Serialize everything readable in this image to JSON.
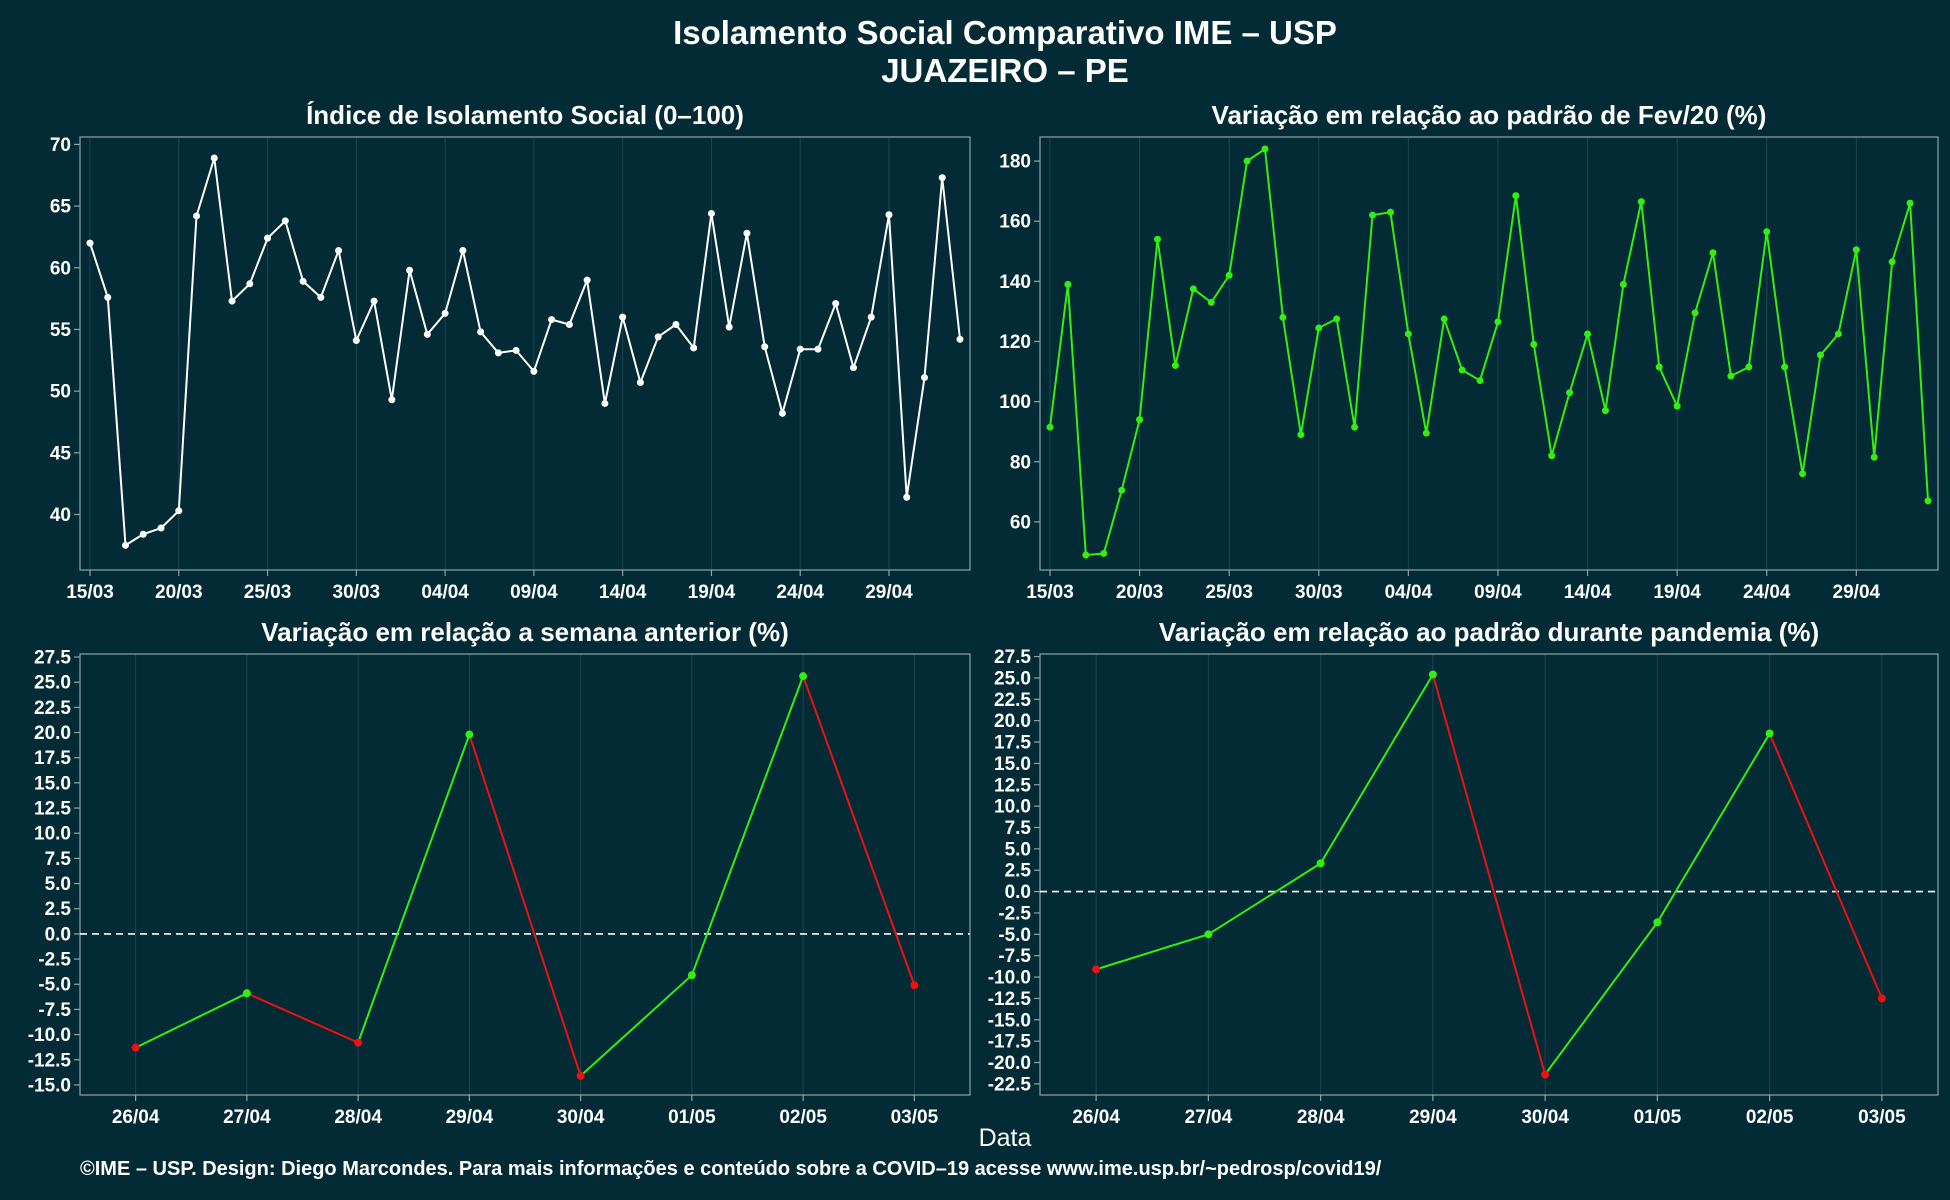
{
  "header": {
    "title": "Isolamento Social Comparativo IME – USP",
    "subtitle": "JUAZEIRO – PE"
  },
  "footer": {
    "xlabel": "Data",
    "credit": "©IME – USP. Design: Diego Marcondes. Para mais informações e conteúdo sobre a COVID–19 acesse www.ime.usp.br/~pedrosp/covid19/"
  },
  "colors": {
    "background": "#022b36",
    "white_series": "#ffffff",
    "green": "#33ee11",
    "red": "#ee1111",
    "grid": "#1f4650",
    "axis": "#8fa3a8"
  },
  "chart_data": [
    {
      "type": "line",
      "title": "Índice de Isolamento Social (0–100)",
      "xticks": [
        "15/03",
        "20/03",
        "25/03",
        "30/03",
        "04/04",
        "09/04",
        "14/04",
        "19/04",
        "24/04",
        "29/04"
      ],
      "xtick_index": [
        0,
        5,
        10,
        15,
        20,
        25,
        30,
        35,
        40,
        45
      ],
      "yticks": [
        40,
        45,
        50,
        55,
        60,
        65,
        70
      ],
      "ylim": [
        35.5,
        70.6
      ],
      "series": [
        {
          "color": "#ffffff",
          "values": [
            62.0,
            57.6,
            37.5,
            38.4,
            38.9,
            40.3,
            64.2,
            68.9,
            57.3,
            58.7,
            62.4,
            63.8,
            58.9,
            57.6,
            61.4,
            54.1,
            57.3,
            49.3,
            59.8,
            54.6,
            56.3,
            61.4,
            54.8,
            53.1,
            53.3,
            51.6,
            55.8,
            55.4,
            59.0,
            49.0,
            56.0,
            50.7,
            54.4,
            55.4,
            53.5,
            64.4,
            55.2,
            62.8,
            53.6,
            48.2,
            53.4,
            53.4,
            57.1,
            51.9,
            56.0,
            64.3,
            41.4,
            51.1,
            67.3,
            54.2
          ]
        }
      ]
    },
    {
      "type": "line",
      "title": "Variação em relação ao padrão de Fev/20 (%)",
      "xticks": [
        "15/03",
        "20/03",
        "25/03",
        "30/03",
        "04/04",
        "09/04",
        "14/04",
        "19/04",
        "24/04",
        "29/04"
      ],
      "xtick_index": [
        0,
        5,
        10,
        15,
        20,
        25,
        30,
        35,
        40,
        45
      ],
      "yticks": [
        60,
        80,
        100,
        120,
        140,
        160,
        180
      ],
      "ylim": [
        44,
        188
      ],
      "series": [
        {
          "color": "#33ee11",
          "values": [
            91.5,
            139.0,
            49.0,
            49.5,
            70.5,
            94.0,
            154.0,
            112.0,
            137.5,
            133.0,
            142.0,
            180.0,
            184.0,
            128.0,
            89.0,
            124.5,
            127.5,
            91.5,
            162.0,
            163.0,
            122.5,
            89.5,
            127.5,
            110.5,
            107.0,
            126.5,
            168.5,
            119.0,
            82.0,
            103.0,
            122.5,
            97.0,
            139.0,
            166.5,
            111.5,
            98.5,
            129.5,
            149.5,
            108.5,
            111.5,
            156.5,
            111.5,
            76.0,
            115.5,
            122.5,
            150.5,
            81.5,
            146.5,
            166.0,
            67.0
          ]
        }
      ]
    },
    {
      "type": "line",
      "title": "Variação em relação a semana anterior (%)",
      "categories": [
        "26/04",
        "27/04",
        "28/04",
        "29/04",
        "30/04",
        "01/05",
        "02/05",
        "03/05"
      ],
      "yticks": [
        -15.0,
        -12.5,
        -10.0,
        -7.5,
        -5.0,
        -2.5,
        0.0,
        2.5,
        5.0,
        7.5,
        10.0,
        12.5,
        15.0,
        17.5,
        20.0,
        22.5,
        25.0,
        27.5
      ],
      "ylim": [
        -16.0,
        27.8
      ],
      "reference_line": 0,
      "series": [
        {
          "values": [
            -11.3,
            -5.9,
            -10.8,
            19.8,
            -14.1,
            -4.1,
            25.6,
            -5.1
          ]
        }
      ]
    },
    {
      "type": "line",
      "title": "Variação em relação ao padrão durante pandemia (%)",
      "categories": [
        "26/04",
        "27/04",
        "28/04",
        "29/04",
        "30/04",
        "01/05",
        "02/05",
        "03/05"
      ],
      "yticks": [
        -22.5,
        -20.0,
        -17.5,
        -15.0,
        -12.5,
        -10.0,
        -7.5,
        -5.0,
        -2.5,
        0.0,
        2.5,
        5.0,
        7.5,
        10.0,
        12.5,
        15.0,
        17.5,
        20.0,
        22.5,
        25.0,
        27.5
      ],
      "ylim": [
        -23.8,
        27.8
      ],
      "reference_line": 0,
      "series": [
        {
          "values": [
            -9.1,
            -5.0,
            3.3,
            25.4,
            -21.4,
            -3.6,
            18.5,
            -12.5
          ]
        }
      ]
    }
  ]
}
